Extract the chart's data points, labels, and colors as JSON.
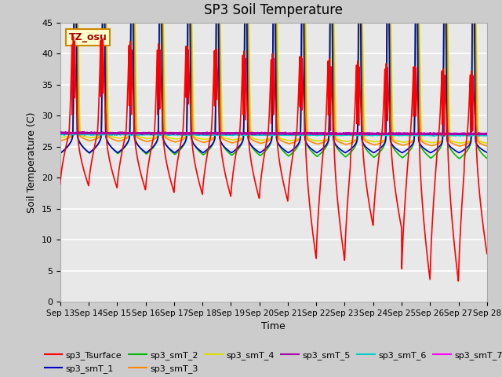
{
  "title": "SP3 Soil Temperature",
  "xlabel": "Time",
  "ylabel": "Soil Temperature (C)",
  "ylim": [
    0,
    45
  ],
  "xlim_days": [
    0,
    15
  ],
  "fig_bg": "#cccccc",
  "plot_bg": "#e8e8e8",
  "annotation_text": "TZ_osu",
  "annotation_bg": "#ffffcc",
  "annotation_border": "#cc8800",
  "series_colors": {
    "sp3_Tsurface": "#ff0000",
    "sp3_smT_1": "#0000cc",
    "sp3_smT_2": "#00bb00",
    "sp3_smT_3": "#ff8800",
    "sp3_smT_4": "#dddd00",
    "sp3_smT_5": "#aa00aa",
    "sp3_smT_6": "#00cccc",
    "sp3_smT_7": "#ff00ff"
  },
  "x_tick_labels": [
    "Sep 13",
    "Sep 14",
    "Sep 15",
    "Sep 16",
    "Sep 17",
    "Sep 18",
    "Sep 19",
    "Sep 20",
    "Sep 21",
    "Sep 22",
    "Sep 23",
    "Sep 24",
    "Sep 25",
    "Sep 26",
    "Sep 27",
    "Sep 28"
  ],
  "x_tick_positions": [
    0,
    1,
    2,
    3,
    4,
    5,
    6,
    7,
    8,
    9,
    10,
    11,
    12,
    13,
    14,
    15
  ],
  "yticks": [
    0,
    5,
    10,
    15,
    20,
    25,
    30,
    35,
    40,
    45
  ]
}
